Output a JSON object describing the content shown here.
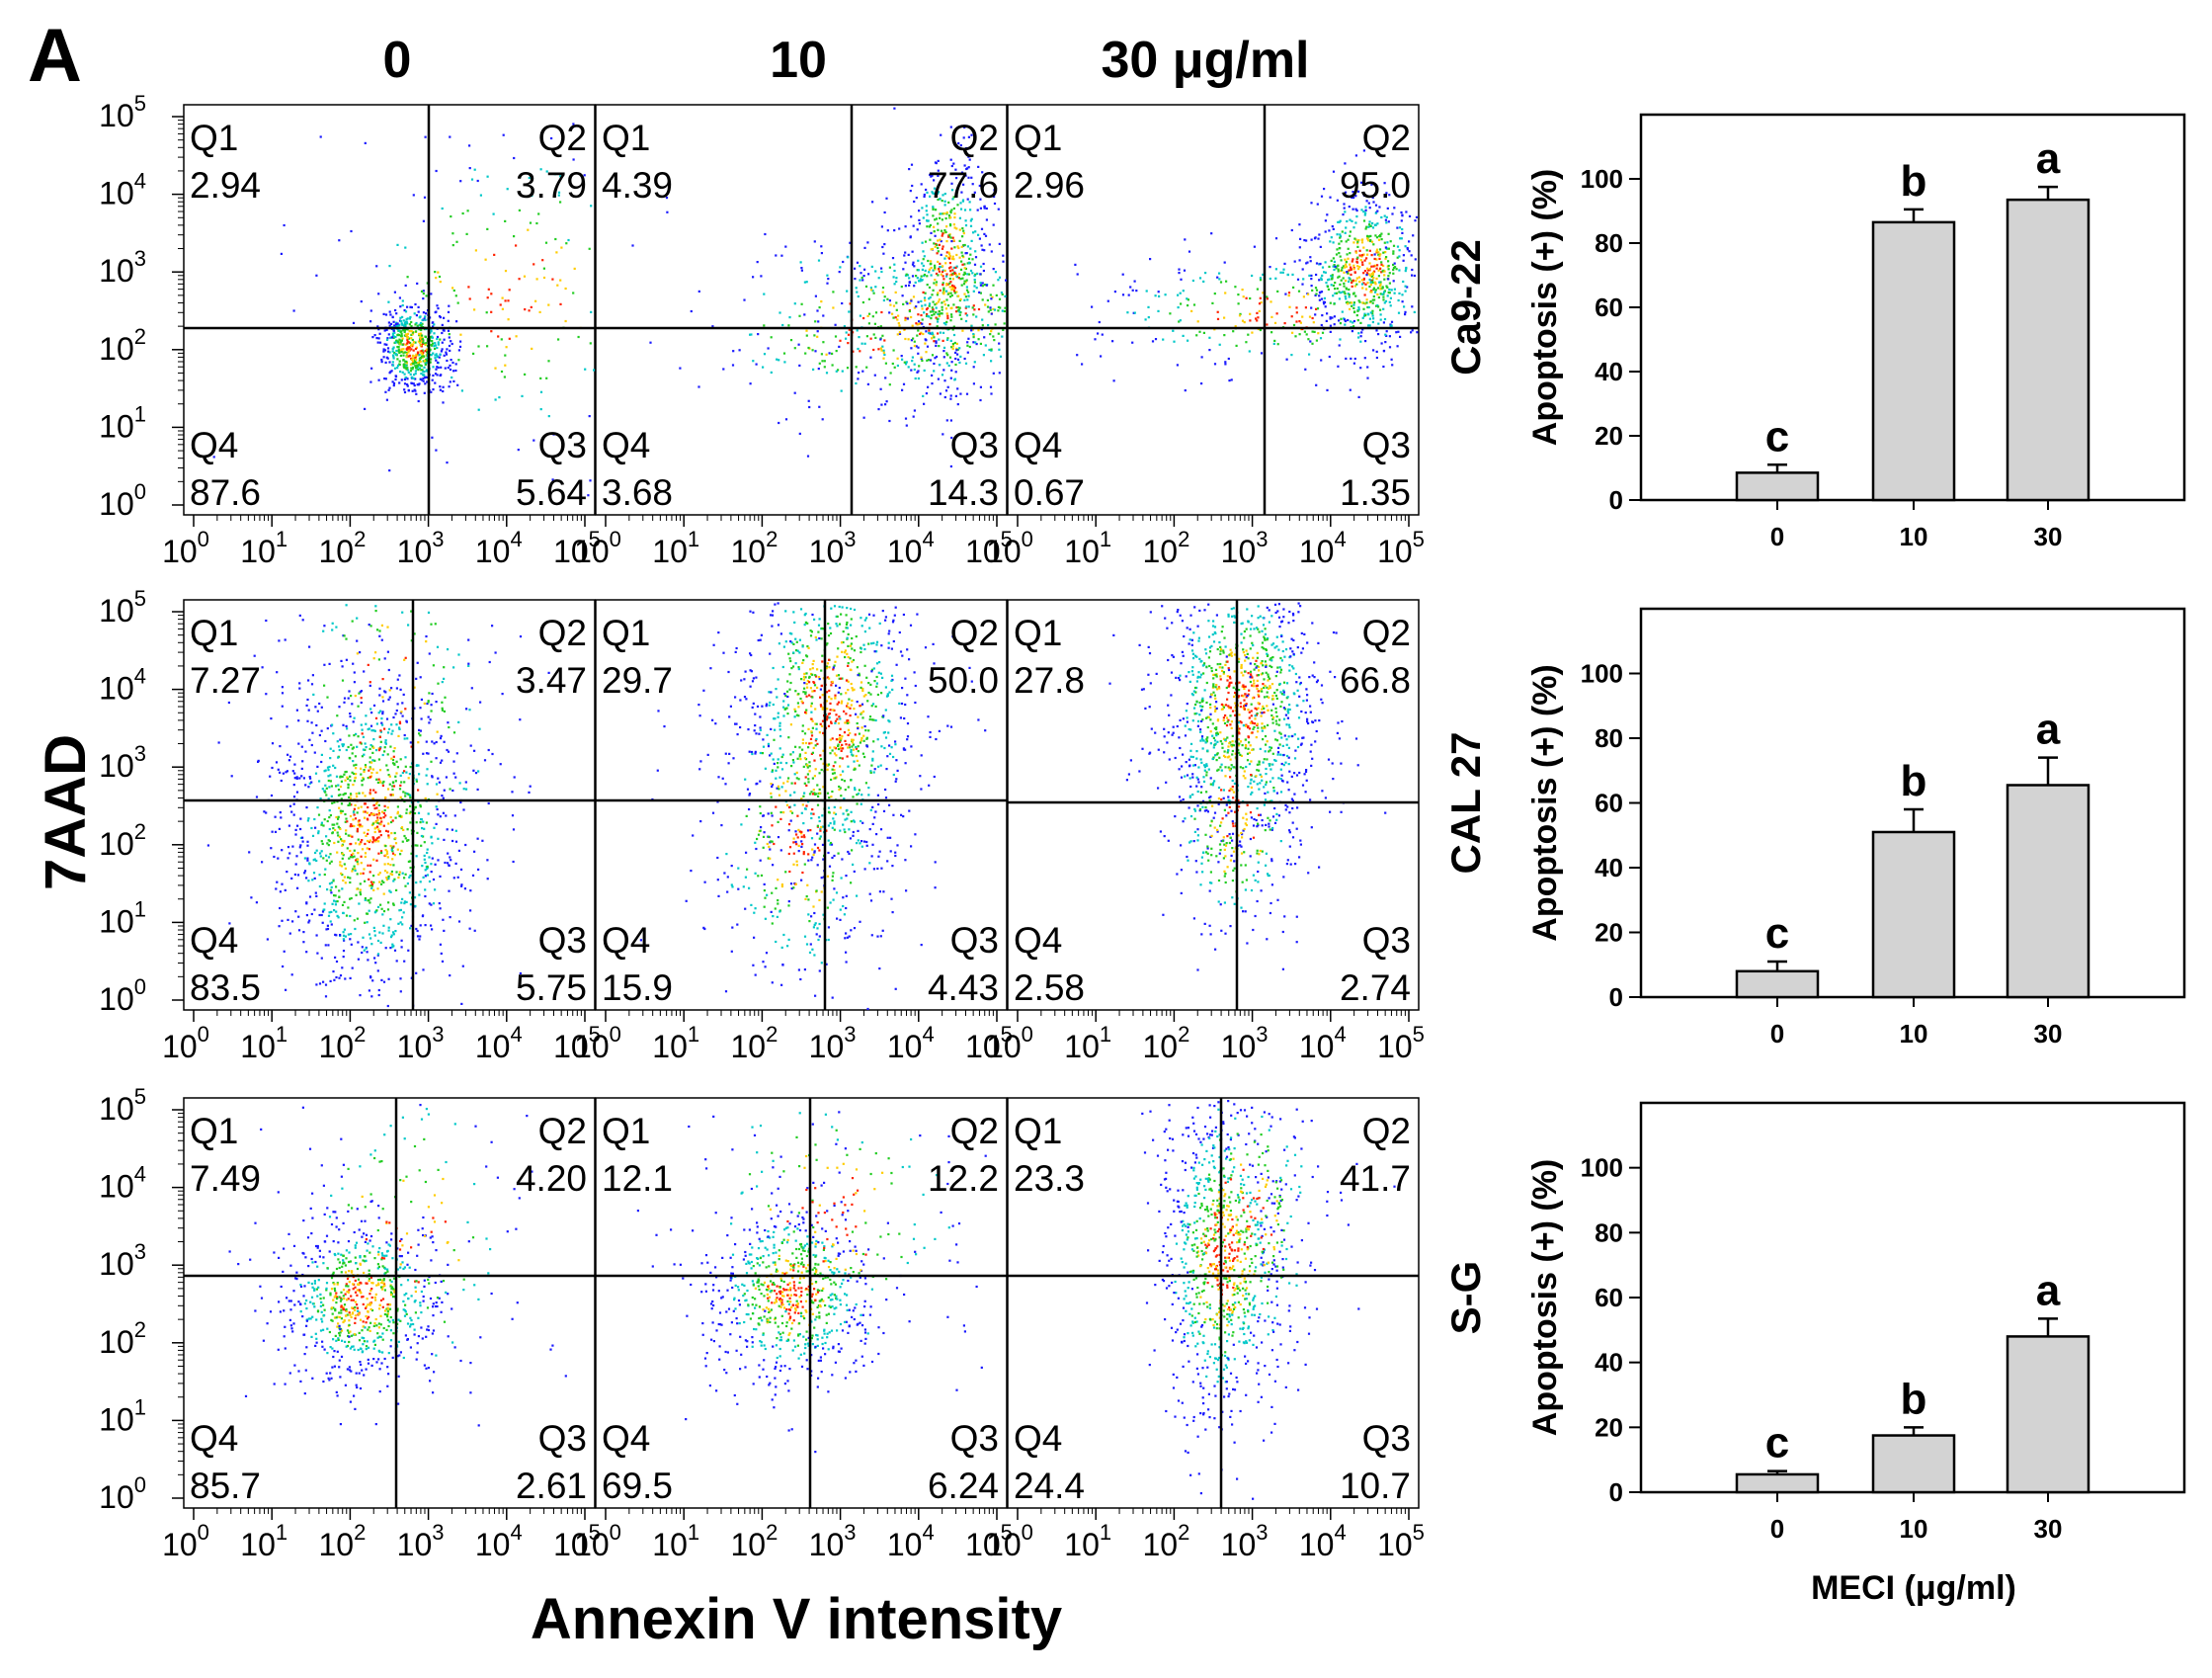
{
  "panel_label": "A",
  "col_headers": [
    "0",
    "10",
    "30 μg/ml"
  ],
  "y_axis_label": "7AAD",
  "x_axis_label": "Annexin V intensity",
  "flow_tick_labels": [
    "10",
    "10",
    "10",
    "10",
    "10",
    "10"
  ],
  "flow_tick_exps": [
    "0",
    "1",
    "2",
    "3",
    "4",
    "5"
  ],
  "quadrant_names": [
    "Q1",
    "Q2",
    "Q3",
    "Q4"
  ],
  "bar_ylabel": "Apoptosis (+) (%)",
  "bar_xlabel": "MECI (μg/ml)",
  "colors": {
    "bar_fill": "#d3d3d3",
    "dot_low": "#1a1aff",
    "dot_mid": "#22cc22",
    "dot_high": "#ff2200"
  },
  "chart_data": [
    {
      "type": "scatter",
      "subtype": "flow-cytometry-quadrant-grid",
      "row_labels": [
        "Ca9-22",
        "CAL 27",
        "S-G"
      ],
      "col_labels": [
        "0",
        "10",
        "30 μg/ml"
      ],
      "xlabel": "Annexin V intensity",
      "ylabel": "7AAD",
      "axis_scale": "log",
      "xlim": [
        1,
        100000
      ],
      "ylim": [
        1,
        100000
      ],
      "panels": [
        [
          {
            "q1": "2.94",
            "q2": "3.79",
            "q3": "5.64",
            "q4": "87.6"
          },
          {
            "q1": "4.39",
            "q2": "77.6",
            "q3": "14.3",
            "q4": "3.68"
          },
          {
            "q1": "2.96",
            "q2": "95.0",
            "q3": "1.35",
            "q4": "0.67"
          }
        ],
        [
          {
            "q1": "7.27",
            "q2": "3.47",
            "q3": "5.75",
            "q4": "83.5"
          },
          {
            "q1": "29.7",
            "q2": "50.0",
            "q3": "4.43",
            "q4": "15.9"
          },
          {
            "q1": "27.8",
            "q2": "66.8",
            "q3": "2.74",
            "q4": "2.58"
          }
        ],
        [
          {
            "q1": "7.49",
            "q2": "4.20",
            "q3": "2.61",
            "q4": "85.7"
          },
          {
            "q1": "12.1",
            "q2": "12.2",
            "q3": "6.24",
            "q4": "69.5"
          },
          {
            "q1": "23.3",
            "q2": "41.7",
            "q3": "10.7",
            "q4": "24.4"
          }
        ]
      ]
    },
    {
      "type": "bar",
      "row_label": "Ca9-22",
      "categories": [
        "0",
        "10",
        "30"
      ],
      "values": [
        8.5,
        86.5,
        93.5
      ],
      "errors": [
        2.5,
        4.0,
        4.0
      ],
      "letters": [
        "c",
        "b",
        "a"
      ],
      "ylabel": "Apoptosis (+) (%)",
      "ylim": [
        0,
        120
      ],
      "yticks": [
        0,
        20,
        40,
        60,
        80,
        100
      ]
    },
    {
      "type": "bar",
      "row_label": "CAL 27",
      "categories": [
        "0",
        "10",
        "30"
      ],
      "values": [
        8.0,
        51.0,
        65.5
      ],
      "errors": [
        3.0,
        7.0,
        8.5
      ],
      "letters": [
        "c",
        "b",
        "a"
      ],
      "ylabel": "Apoptosis (+) (%)",
      "ylim": [
        0,
        120
      ],
      "yticks": [
        0,
        20,
        40,
        60,
        80,
        100
      ]
    },
    {
      "type": "bar",
      "row_label": "S-G",
      "categories": [
        "0",
        "10",
        "30"
      ],
      "values": [
        5.5,
        17.5,
        48.0
      ],
      "errors": [
        1.0,
        2.5,
        5.5
      ],
      "letters": [
        "c",
        "b",
        "a"
      ],
      "ylabel": "Apoptosis (+) (%)",
      "xlabel": "MECI (μg/ml)",
      "ylim": [
        0,
        120
      ],
      "yticks": [
        0,
        20,
        40,
        60,
        80,
        100
      ]
    }
  ]
}
